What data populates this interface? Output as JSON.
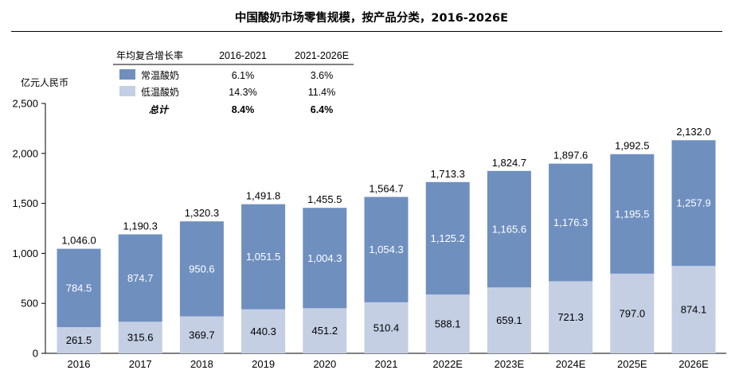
{
  "title": "中国酸奶市场零售规模，按产品分类，2016-2026E",
  "colors": {
    "ambient": "#6f8fbf",
    "chilled": "#c4cfe4",
    "axis": "#000000",
    "value_text": "#ffffff",
    "dark_text": "#000000"
  },
  "cagr_table": {
    "header": [
      "年均复合增长率",
      "2016-2021",
      "2021-2026E"
    ],
    "rows": [
      {
        "label": "常温酸奶",
        "swatch": "ambient",
        "values": [
          "6.1%",
          "3.6%"
        ]
      },
      {
        "label": "低温酸奶",
        "swatch": "chilled",
        "values": [
          "14.3%",
          "11.4%"
        ]
      }
    ],
    "total": {
      "label": "总计",
      "values": [
        "8.4%",
        "6.4%"
      ]
    }
  },
  "chart_data": {
    "type": "bar",
    "stacked": true,
    "ylabel": "亿元人民币",
    "ylim": [
      0,
      2500
    ],
    "yticks": [
      0,
      500,
      1000,
      1500,
      2000,
      2500
    ],
    "ytick_labels": [
      "0",
      "500",
      "1,000",
      "1,500",
      "2,000",
      "2,500"
    ],
    "categories": [
      "2016",
      "2017",
      "2018",
      "2019",
      "2020",
      "2021",
      "2022E",
      "2023E",
      "2024E",
      "2025E",
      "2026E"
    ],
    "series": [
      {
        "name": "低温酸奶",
        "color_key": "chilled",
        "values": [
          261.5,
          315.6,
          369.7,
          440.3,
          451.2,
          510.4,
          588.1,
          659.1,
          721.3,
          797.0,
          874.1
        ],
        "labels": [
          "261.5",
          "315.6",
          "369.7",
          "440.3",
          "451.2",
          "510.4",
          "588.1",
          "659.1",
          "721.3",
          "797.0",
          "874.1"
        ]
      },
      {
        "name": "常温酸奶",
        "color_key": "ambient",
        "values": [
          784.5,
          874.7,
          950.6,
          1051.5,
          1004.3,
          1054.3,
          1125.2,
          1165.6,
          1176.3,
          1195.5,
          1257.9
        ],
        "labels": [
          "784.5",
          "874.7",
          "950.6",
          "1,051.5",
          "1,004.3",
          "1,054.3",
          "1,125.2",
          "1,165.6",
          "1,176.3",
          "1,195.5",
          "1,257.9"
        ]
      }
    ],
    "totals": [
      1046.0,
      1190.3,
      1320.3,
      1491.8,
      1455.5,
      1564.7,
      1713.3,
      1824.7,
      1897.6,
      1992.5,
      2132.0
    ],
    "total_labels": [
      "1,046.0",
      "1,190.3",
      "1,320.3",
      "1,491.8",
      "1,455.5",
      "1,564.7",
      "1,713.3",
      "1,824.7",
      "1,897.6",
      "1,992.5",
      "2,132.0"
    ],
    "grid": false,
    "legend": "top-left table"
  }
}
